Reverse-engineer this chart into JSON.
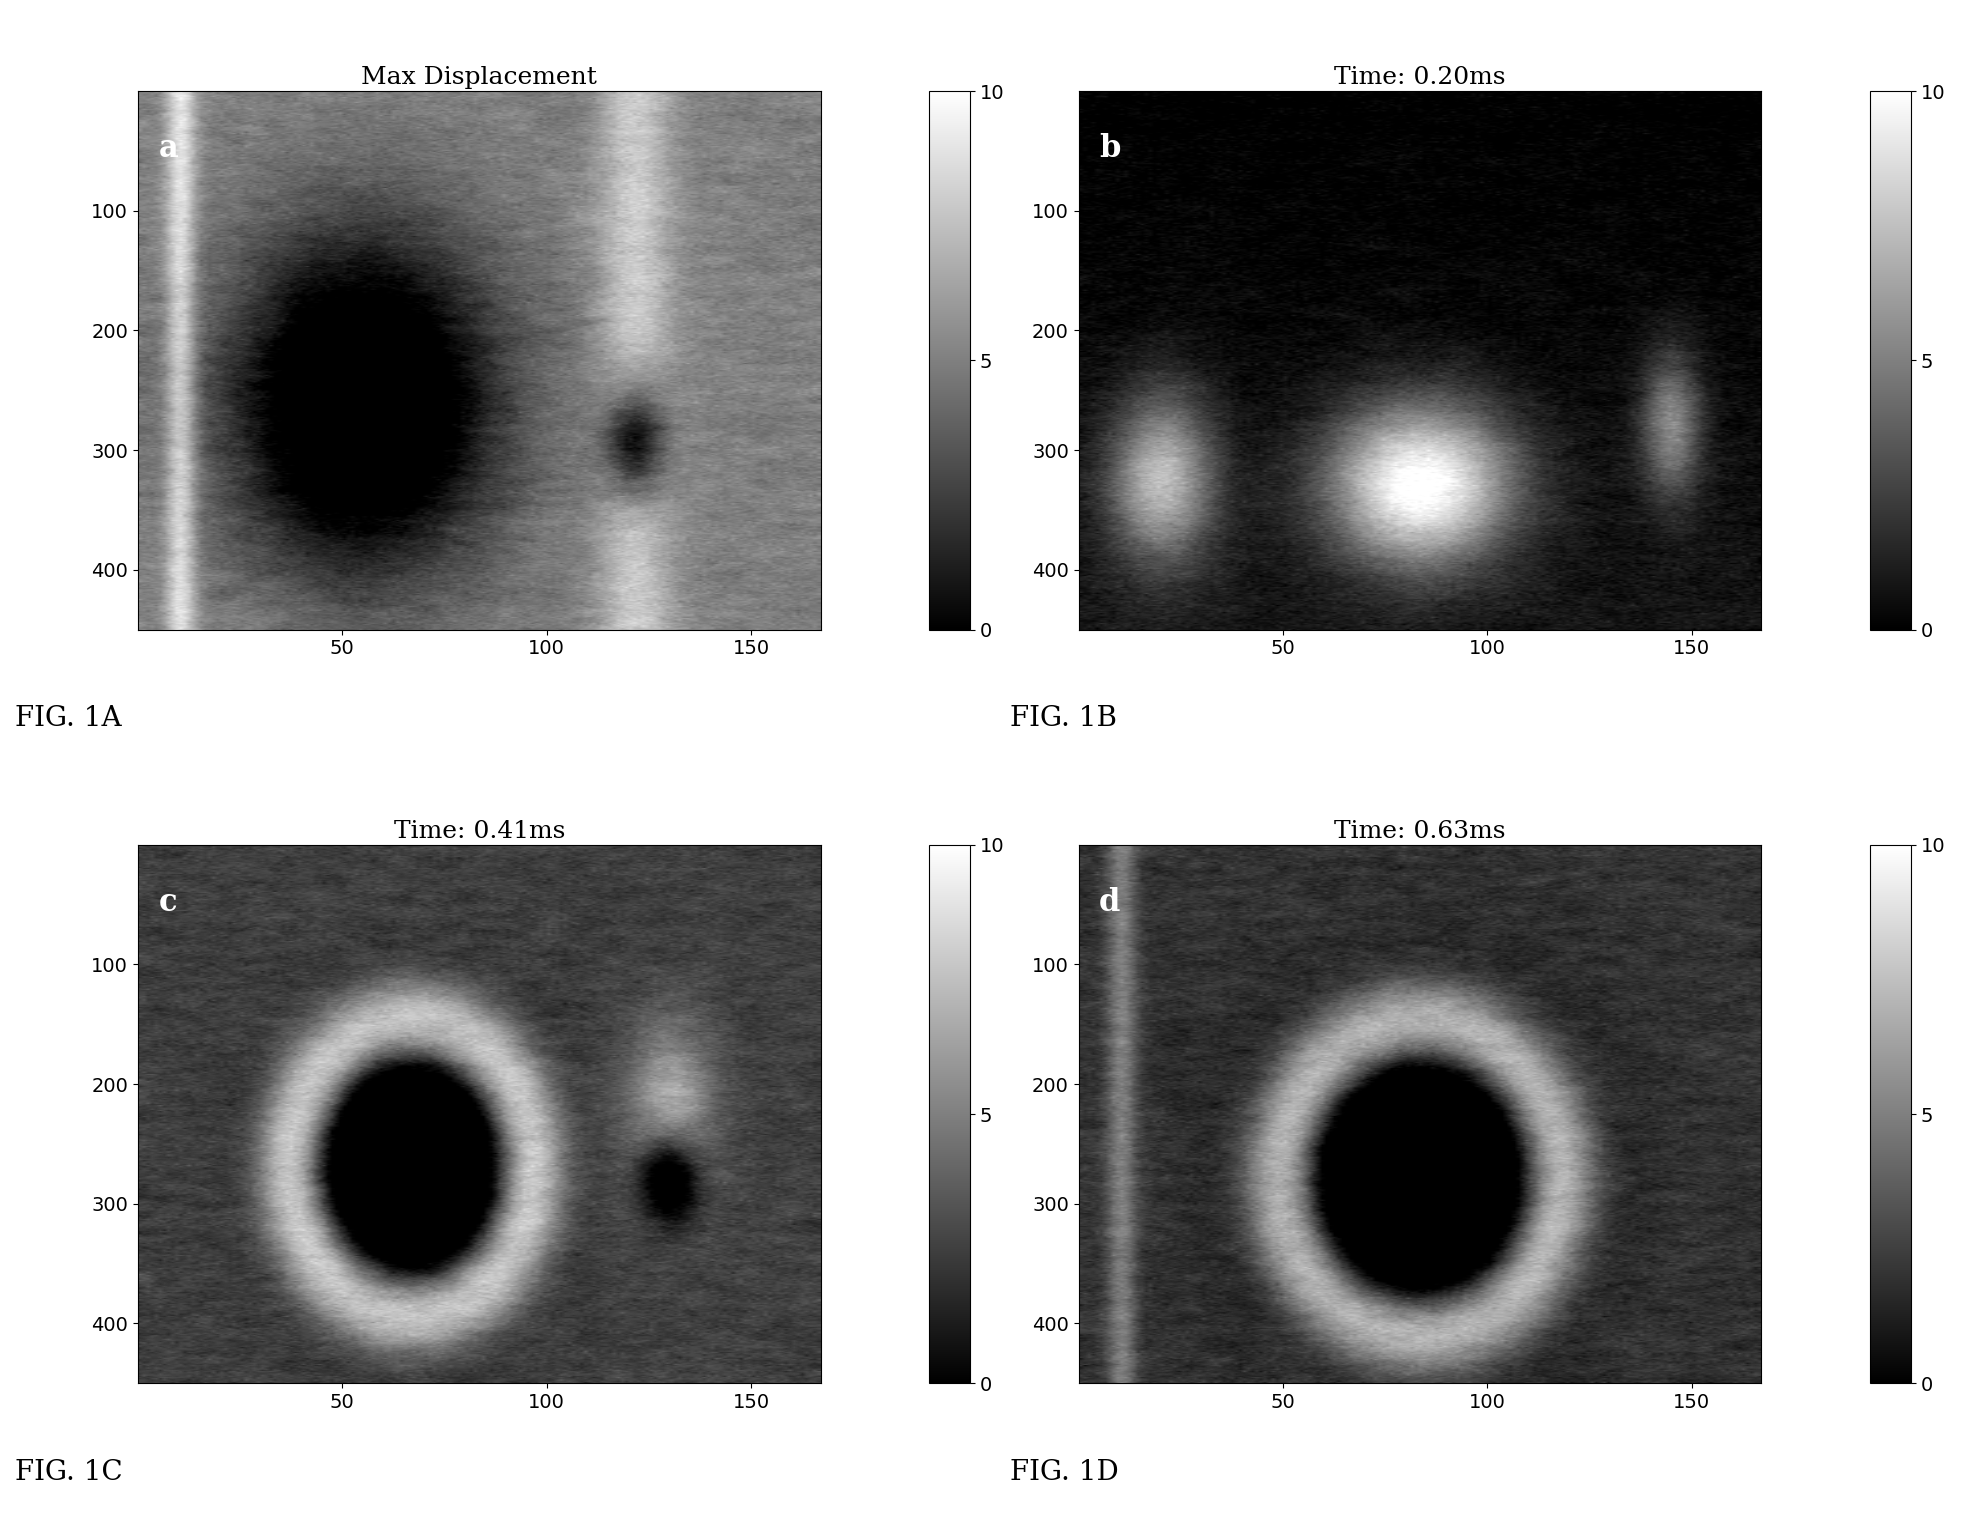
{
  "titles": [
    "Max Displacement",
    "Time: 0.20ms",
    "Time: 0.41ms",
    "Time: 0.63ms"
  ],
  "fig_labels": [
    "FIG. 1A",
    "FIG. 1B",
    "FIG. 1C",
    "FIG. 1D"
  ],
  "panel_letters": [
    "a",
    "b",
    "c",
    "d"
  ],
  "cbar_ticks": [
    0,
    5,
    10
  ],
  "cbar_vmin": 0,
  "cbar_vmax": 10,
  "xlim_max": 167,
  "ylim_max": 450,
  "xticks": [
    50,
    100,
    150
  ],
  "yticks": [
    100,
    200,
    300,
    400
  ],
  "background_color": "#ffffff",
  "seed": 42,
  "nx": 167,
  "ny": 450
}
